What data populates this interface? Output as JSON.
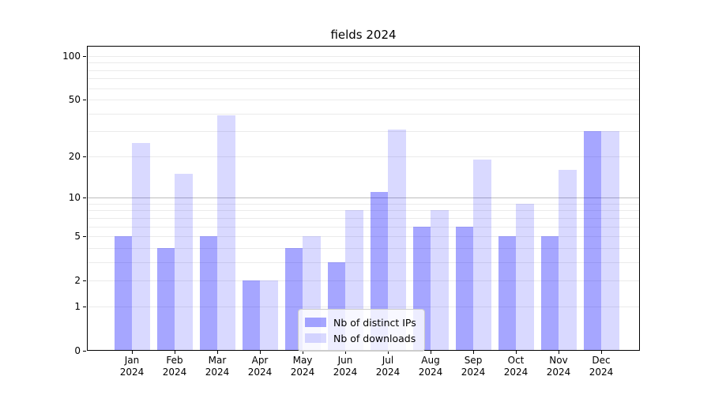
{
  "chart_data": {
    "type": "bar",
    "title": "fields 2024",
    "categories": [
      "Jan",
      "Feb",
      "Mar",
      "Apr",
      "May",
      "Jun",
      "Jul",
      "Aug",
      "Sep",
      "Oct",
      "Nov",
      "Dec"
    ],
    "x_year_label": "2024",
    "series": [
      {
        "name": "Nb of distinct IPs",
        "color": "rgba(0,0,255,0.35)",
        "values": [
          5,
          4,
          5,
          2,
          4,
          3,
          11,
          6,
          6,
          5,
          5,
          30
        ]
      },
      {
        "name": "Nb of downloads",
        "color": "rgba(0,0,255,0.15)",
        "values": [
          25,
          15,
          39,
          2,
          5,
          8,
          31,
          8,
          19,
          9,
          16,
          30
        ]
      }
    ],
    "yscale": "log1p",
    "ylim": [
      0,
      117.3
    ],
    "yticks": [
      100,
      50,
      20,
      10,
      5,
      2,
      1,
      0
    ],
    "grid_minor_values": [
      1,
      2,
      3,
      4,
      5,
      6,
      7,
      8,
      9,
      20,
      30,
      40,
      50,
      60,
      70,
      80,
      90,
      100
    ],
    "grid_major_values": [
      10
    ],
    "grid_minor_color": "#ebebeb",
    "grid_major_color": "#bdbdbd",
    "legend_position": "lower center",
    "xlabel": "",
    "ylabel": "",
    "grid": true
  }
}
